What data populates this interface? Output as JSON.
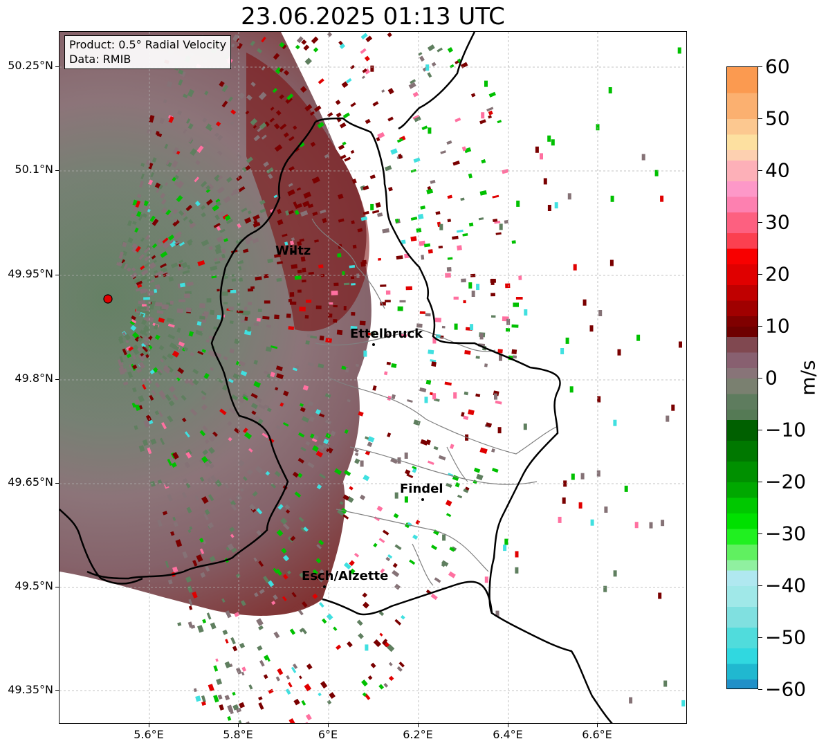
{
  "title": "23.06.2025 01:13 UTC",
  "info": {
    "product": "Product: 0.5° Radial Velocity",
    "source": "Data: RMIB"
  },
  "axes": {
    "lon_labels": [
      "5.6°E",
      "5.8°E",
      "6°E",
      "6.2°E",
      "6.4°E",
      "6.6°E"
    ],
    "lat_labels": [
      "50.25°N",
      "50.1°N",
      "49.95°N",
      "49.8°N",
      "49.65°N",
      "49.5°N",
      "49.35°N"
    ]
  },
  "cities": [
    {
      "name": "Wiltz"
    },
    {
      "name": "Ettelbruck"
    },
    {
      "name": "Findel"
    },
    {
      "name": "Esch/Alzette"
    }
  ],
  "colorbar": {
    "unit": "m/s",
    "ticks": [
      "60",
      "50",
      "40",
      "30",
      "20",
      "10",
      "0",
      "−10",
      "−20",
      "−30",
      "−40",
      "−50",
      "−60"
    ],
    "range": [
      -60,
      60
    ]
  },
  "colors": {
    "receding_dark": "#7a0000",
    "receding_red": "#e00000",
    "receding_pink": "#ff70a0",
    "near_zero_mauve": "#857276",
    "near_zero_green": "#5f7f5f",
    "approaching_green": "#00c000",
    "approaching_cyan": "#40e0e0",
    "border": "#000000",
    "canton_border": "#808080",
    "radar_site": "#e00000"
  }
}
